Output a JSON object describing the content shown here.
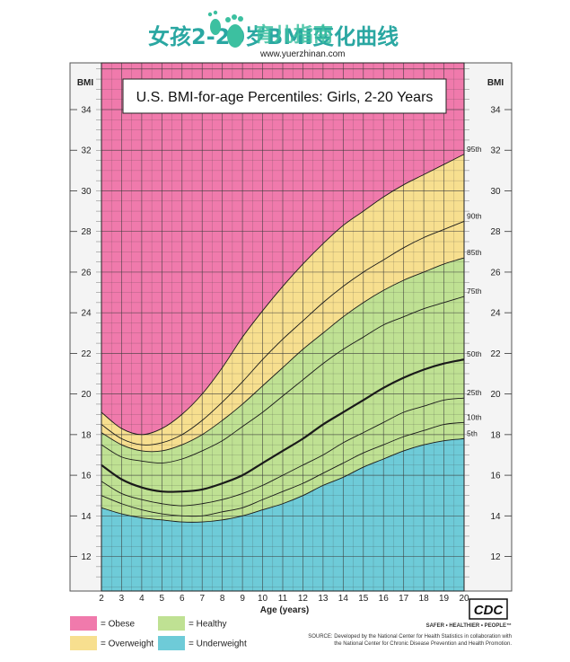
{
  "page": {
    "overlay_title": "女孩2-20岁BMI变化曲线",
    "watermark": "育儿指南",
    "watermark_url": "www.yuerzhinan.com"
  },
  "chart_data": {
    "type": "line",
    "title": "U.S. BMI-for-age Percentiles: Girls, 2-20 Years",
    "xlabel": "Age (years)",
    "ylabel": "BMI",
    "xlim": [
      2,
      20
    ],
    "ylim": [
      10,
      36
    ],
    "x_ticks": [
      2,
      3,
      4,
      5,
      6,
      7,
      8,
      9,
      10,
      11,
      12,
      13,
      14,
      15,
      16,
      17,
      18,
      19,
      20
    ],
    "y_ticks": [
      12,
      14,
      16,
      18,
      20,
      22,
      24,
      26,
      28,
      30,
      32,
      34
    ],
    "grid": true,
    "x": [
      2,
      3,
      4,
      5,
      6,
      7,
      8,
      9,
      10,
      11,
      12,
      13,
      14,
      15,
      16,
      17,
      18,
      19,
      20
    ],
    "series": [
      {
        "name": "95th",
        "values": [
          19.1,
          18.3,
          18.0,
          18.3,
          19.0,
          20.0,
          21.3,
          22.8,
          24.1,
          25.3,
          26.4,
          27.4,
          28.3,
          29.0,
          29.7,
          30.3,
          30.8,
          31.3,
          31.8
        ]
      },
      {
        "name": "90th",
        "values": [
          18.5,
          17.8,
          17.5,
          17.6,
          18.0,
          18.7,
          19.6,
          20.6,
          21.7,
          22.7,
          23.6,
          24.5,
          25.3,
          26.0,
          26.6,
          27.2,
          27.7,
          28.1,
          28.5
        ]
      },
      {
        "name": "85th",
        "values": [
          18.1,
          17.5,
          17.2,
          17.2,
          17.5,
          18.0,
          18.7,
          19.5,
          20.4,
          21.3,
          22.2,
          23.0,
          23.8,
          24.5,
          25.1,
          25.6,
          26.0,
          26.4,
          26.7
        ]
      },
      {
        "name": "75th",
        "values": [
          17.5,
          16.9,
          16.7,
          16.6,
          16.8,
          17.2,
          17.7,
          18.4,
          19.1,
          19.9,
          20.7,
          21.5,
          22.2,
          22.8,
          23.4,
          23.8,
          24.2,
          24.5,
          24.8
        ]
      },
      {
        "name": "50th",
        "values": [
          16.5,
          15.8,
          15.4,
          15.2,
          15.2,
          15.3,
          15.6,
          16.0,
          16.6,
          17.2,
          17.8,
          18.5,
          19.1,
          19.7,
          20.3,
          20.8,
          21.2,
          21.5,
          21.7
        ]
      },
      {
        "name": "25th",
        "values": [
          15.7,
          15.1,
          14.8,
          14.6,
          14.5,
          14.6,
          14.8,
          15.1,
          15.5,
          16.0,
          16.5,
          17.0,
          17.6,
          18.1,
          18.6,
          19.1,
          19.4,
          19.7,
          19.8
        ]
      },
      {
        "name": "10th",
        "values": [
          15.0,
          14.6,
          14.3,
          14.1,
          14.0,
          14.0,
          14.2,
          14.4,
          14.8,
          15.2,
          15.6,
          16.1,
          16.6,
          17.1,
          17.5,
          17.9,
          18.2,
          18.5,
          18.6
        ]
      },
      {
        "name": "5th",
        "values": [
          14.4,
          14.1,
          13.9,
          13.8,
          13.7,
          13.7,
          13.8,
          14.0,
          14.3,
          14.6,
          15.0,
          15.5,
          15.9,
          16.4,
          16.8,
          17.2,
          17.5,
          17.7,
          17.8
        ]
      }
    ],
    "legend": {
      "placement": "bottom-left",
      "items": [
        {
          "label": "= Obese",
          "color": "#f07aac"
        },
        {
          "label": "= Overweight",
          "color": "#f7df8f"
        },
        {
          "label": "= Healthy",
          "color": "#bfe193"
        },
        {
          "label": "= Underweight",
          "color": "#6ecbd8"
        }
      ]
    },
    "colors": {
      "obese": "#f07aac",
      "overweight": "#f7df8f",
      "healthy": "#bfe193",
      "underweight": "#6ecbd8",
      "grid": "#3a3a3a",
      "outer": "#f4f4f4"
    },
    "footer": {
      "logo": "CDC",
      "tagline": "SAFER • HEALTHIER • PEOPLE™",
      "source_line1": "SOURCE: Developed by the National Center for Health Statistics in collaboration with",
      "source_line2": "the National Center for Chronic Disease Prevention and Health Promotion."
    }
  }
}
